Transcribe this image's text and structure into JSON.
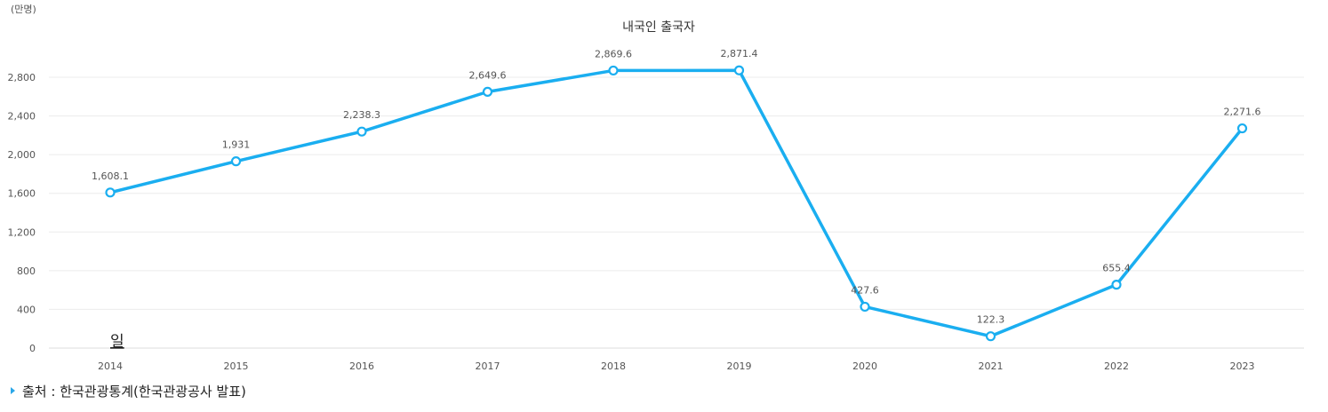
{
  "chart_data": {
    "type": "line",
    "title": "내국인 출국자",
    "unit_label": "(만명)",
    "categories": [
      "2014",
      "2015",
      "2016",
      "2017",
      "2018",
      "2019",
      "2020",
      "2021",
      "2022",
      "2023"
    ],
    "series": [
      {
        "values": [
          1608.1,
          1931,
          2238.3,
          2649.6,
          2869.6,
          2871.4,
          427.6,
          122.3,
          655.4,
          2271.6
        ],
        "labels": [
          "1,608.1",
          "1,931",
          "2,238.3",
          "2,649.6",
          "2,869.6",
          "2,871.4",
          "427.6",
          "122.3",
          "655.4",
          "2,271.6"
        ],
        "color": "#1aaef0"
      }
    ],
    "y_ticks": [
      0,
      400,
      800,
      1200,
      1600,
      2000,
      2400,
      2800
    ],
    "y_tick_labels": [
      "0",
      "400",
      "800",
      "1,200",
      "1,600",
      "2,000",
      "2,400",
      "2,800"
    ],
    "ylim": [
      0,
      2800
    ],
    "grid": true,
    "stray_text": "일"
  },
  "source": {
    "text": "출처 : 한국관광통계(한국관광공사 발표)"
  }
}
